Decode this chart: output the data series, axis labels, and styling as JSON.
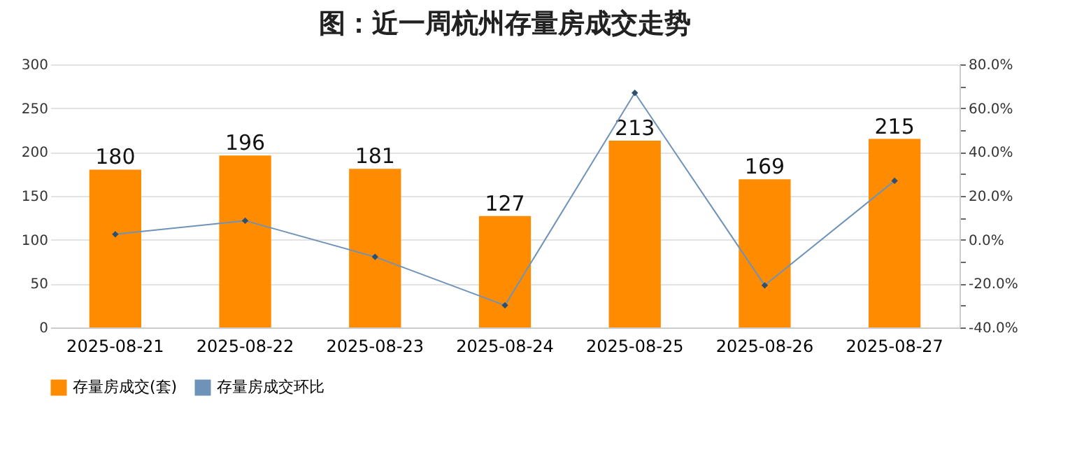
{
  "chart_data": {
    "type": "bar",
    "title": "图：近一周杭州存量房成交走势",
    "categories": [
      "2025-08-21",
      "2025-08-22",
      "2025-08-23",
      "2025-08-24",
      "2025-08-25",
      "2025-08-26",
      "2025-08-27"
    ],
    "series": [
      {
        "name": "存量房成交(套)",
        "color": "#ff8c00",
        "values": [
          180,
          196,
          181,
          127,
          213,
          169,
          215
        ],
        "value_labels": [
          "180",
          "196",
          "181",
          "127",
          "213",
          "169",
          "215"
        ]
      },
      {
        "name": "存量房成交环比",
        "type": "line",
        "axis": "y2",
        "color": "#6f93b8",
        "marker": "diamond",
        "values": [
          2.5,
          8.7,
          -7.8,
          -29.9,
          67,
          -20.8,
          26.9
        ]
      }
    ],
    "ylim": [
      0,
      300
    ],
    "yticks": [
      0,
      50,
      100,
      150,
      200,
      250,
      300
    ],
    "y2lim": [
      -40,
      80
    ],
    "y2ticks": [
      {
        "value": 80,
        "label": "80.0%"
      },
      {
        "value": 70,
        "label": null
      },
      {
        "value": 60,
        "label": "60.0%"
      },
      {
        "value": 50,
        "label": null
      },
      {
        "value": 40,
        "label": "40.0%"
      },
      {
        "value": 30,
        "label": null
      },
      {
        "value": 20,
        "label": "20.0%"
      },
      {
        "value": 10,
        "label": null
      },
      {
        "value": 0,
        "label": "0.0%"
      },
      {
        "value": -10,
        "label": null
      },
      {
        "value": -20,
        "label": "-20.0%"
      },
      {
        "value": -30,
        "label": null
      },
      {
        "value": -40,
        "label": "-40.0%"
      }
    ],
    "grid": "y",
    "legend": "bottom"
  }
}
